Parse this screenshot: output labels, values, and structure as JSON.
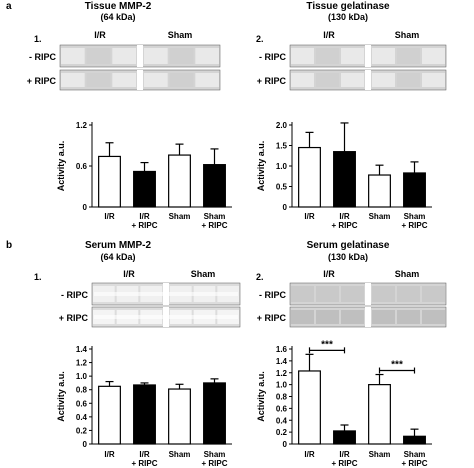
{
  "panels": [
    {
      "letter": "a",
      "title": "Tissue MMP-2",
      "subtitle": "(64 kDa)",
      "number": "1.",
      "blot_groups": [
        "I/R",
        "Sham"
      ],
      "blot_rows": [
        "- RIPC",
        "+ RIPC"
      ],
      "blot_style": "tissue"
    },
    {
      "letter": "",
      "title": "Tissue gelatinase",
      "subtitle": "(130 kDa)",
      "number": "2.",
      "blot_groups": [
        "I/R",
        "Sham"
      ],
      "blot_rows": [
        "- RIPC",
        "+ RIPC"
      ],
      "blot_style": "tissue"
    },
    {
      "letter": "b",
      "title": "Serum MMP-2",
      "subtitle": "(64 kDa)",
      "number": "1.",
      "blot_groups": [
        "I/R",
        "Sham"
      ],
      "blot_rows": [
        "- RIPC",
        "+ RIPC"
      ],
      "blot_style": "serum"
    },
    {
      "letter": "",
      "title": "Serum gelatinase",
      "subtitle": "(130 kDa)",
      "number": "2.",
      "blot_groups": [
        "I/R",
        "Sham"
      ],
      "blot_rows": [
        "- RIPC",
        "+ RIPC"
      ],
      "blot_style": "serum-faint"
    }
  ],
  "colors": {
    "open_bar": "#ffffff",
    "filled_bar": "#000000",
    "axis": "#000000",
    "blot_background": "#d4d4d4"
  },
  "chart_data": [
    {
      "type": "bar",
      "ylabel": "Activity a.u.",
      "ylim": [
        0,
        1.2
      ],
      "yticks": [
        "0",
        "0.6",
        "1.2"
      ],
      "categories": [
        [
          "I/R",
          ""
        ],
        [
          "I/R",
          "+ RIPC"
        ],
        [
          "Sham",
          ""
        ],
        [
          "Sham",
          "+ RIPC"
        ]
      ],
      "bar_fill": [
        "open",
        "filled",
        "open",
        "filled"
      ],
      "values": [
        0.74,
        0.52,
        0.76,
        0.62
      ],
      "errors": [
        0.2,
        0.13,
        0.16,
        0.23
      ],
      "significance": []
    },
    {
      "type": "bar",
      "ylabel": "Activity a.u.",
      "ylim": [
        0,
        2.0
      ],
      "yticks": [
        "0",
        "0.5",
        "1.0",
        "1.5",
        "2.0"
      ],
      "categories": [
        [
          "I/R",
          ""
        ],
        [
          "I/R",
          "+ RIPC"
        ],
        [
          "Sham",
          ""
        ],
        [
          "Sham",
          "+ RIPC"
        ]
      ],
      "bar_fill": [
        "open",
        "filled",
        "open",
        "filled"
      ],
      "values": [
        1.45,
        1.35,
        0.78,
        0.83
      ],
      "errors": [
        0.37,
        0.7,
        0.24,
        0.27
      ],
      "significance": []
    },
    {
      "type": "bar",
      "ylabel": "Activity a.u.",
      "ylim": [
        0,
        1.4
      ],
      "yticks": [
        "0",
        "0.2",
        "0.4",
        "0.6",
        "0.8",
        "1.0",
        "1.2",
        "1.4"
      ],
      "categories": [
        [
          "I/R",
          ""
        ],
        [
          "I/R",
          "+ RIPC"
        ],
        [
          "Sham",
          ""
        ],
        [
          "Sham",
          "+ RIPC"
        ]
      ],
      "bar_fill": [
        "open",
        "filled",
        "open",
        "filled"
      ],
      "values": [
        0.85,
        0.87,
        0.81,
        0.9
      ],
      "errors": [
        0.07,
        0.03,
        0.07,
        0.06
      ],
      "significance": []
    },
    {
      "type": "bar",
      "ylabel": "Activity a.u.",
      "ylim": [
        0,
        1.6
      ],
      "yticks": [
        "0",
        "0.2",
        "0.4",
        "0.6",
        "0.8",
        "1.0",
        "1.2",
        "1.4",
        "1.6"
      ],
      "categories": [
        [
          "I/R",
          ""
        ],
        [
          "I/R",
          "+ RIPC"
        ],
        [
          "Sham",
          ""
        ],
        [
          "Sham",
          "+ RIPC"
        ]
      ],
      "bar_fill": [
        "open",
        "filled",
        "open",
        "filled"
      ],
      "values": [
        1.23,
        0.22,
        1.0,
        0.13
      ],
      "errors": [
        0.28,
        0.1,
        0.17,
        0.12
      ],
      "significance": [
        {
          "from": 0,
          "to": 1,
          "label": "***"
        },
        {
          "from": 2,
          "to": 3,
          "label": "***"
        }
      ]
    }
  ]
}
